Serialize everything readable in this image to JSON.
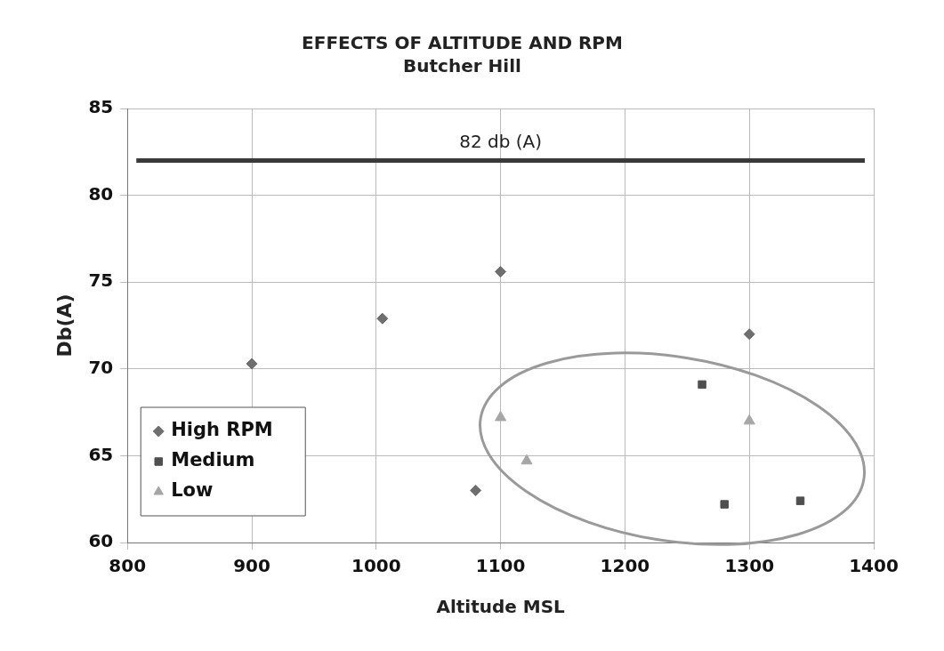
{
  "chart_data": {
    "type": "scatter",
    "title": "EFFECTS OF ALTITUDE AND RPM",
    "subtitle": "Butcher Hill",
    "xlabel": "Altitude MSL",
    "ylabel": "Db(A)",
    "series": [
      {
        "name": "High RPM",
        "color": "#6e6e6e",
        "marker": "diamond",
        "x": [
          900,
          1005,
          1100,
          1300,
          1080
        ],
        "values": [
          70.3,
          72.9,
          75.6,
          72.0,
          63.0
        ]
      },
      {
        "name": "Medium",
        "color": "#4f4f4f",
        "marker": "square",
        "x": [
          1262,
          1280,
          1341
        ],
        "values": [
          69.1,
          62.2,
          62.4
        ]
      },
      {
        "name": "Low",
        "color": "#a6a6a6",
        "marker": "triangle",
        "x": [
          1100,
          1121,
          1300
        ],
        "values": [
          67.2,
          64.7,
          67.0
        ]
      }
    ],
    "xlim": [
      800,
      1400
    ],
    "xticks": [
      800,
      900,
      1000,
      1100,
      1200,
      1300,
      1400
    ],
    "ylim": [
      60,
      85
    ],
    "yticks": [
      60,
      65,
      70,
      75,
      80,
      85
    ],
    "ref_lines": [
      {
        "axis": "y",
        "value": 82,
        "label": "82 db (A)",
        "color": "#3a3a3a"
      }
    ],
    "grid": true,
    "legend": "bottom left"
  }
}
